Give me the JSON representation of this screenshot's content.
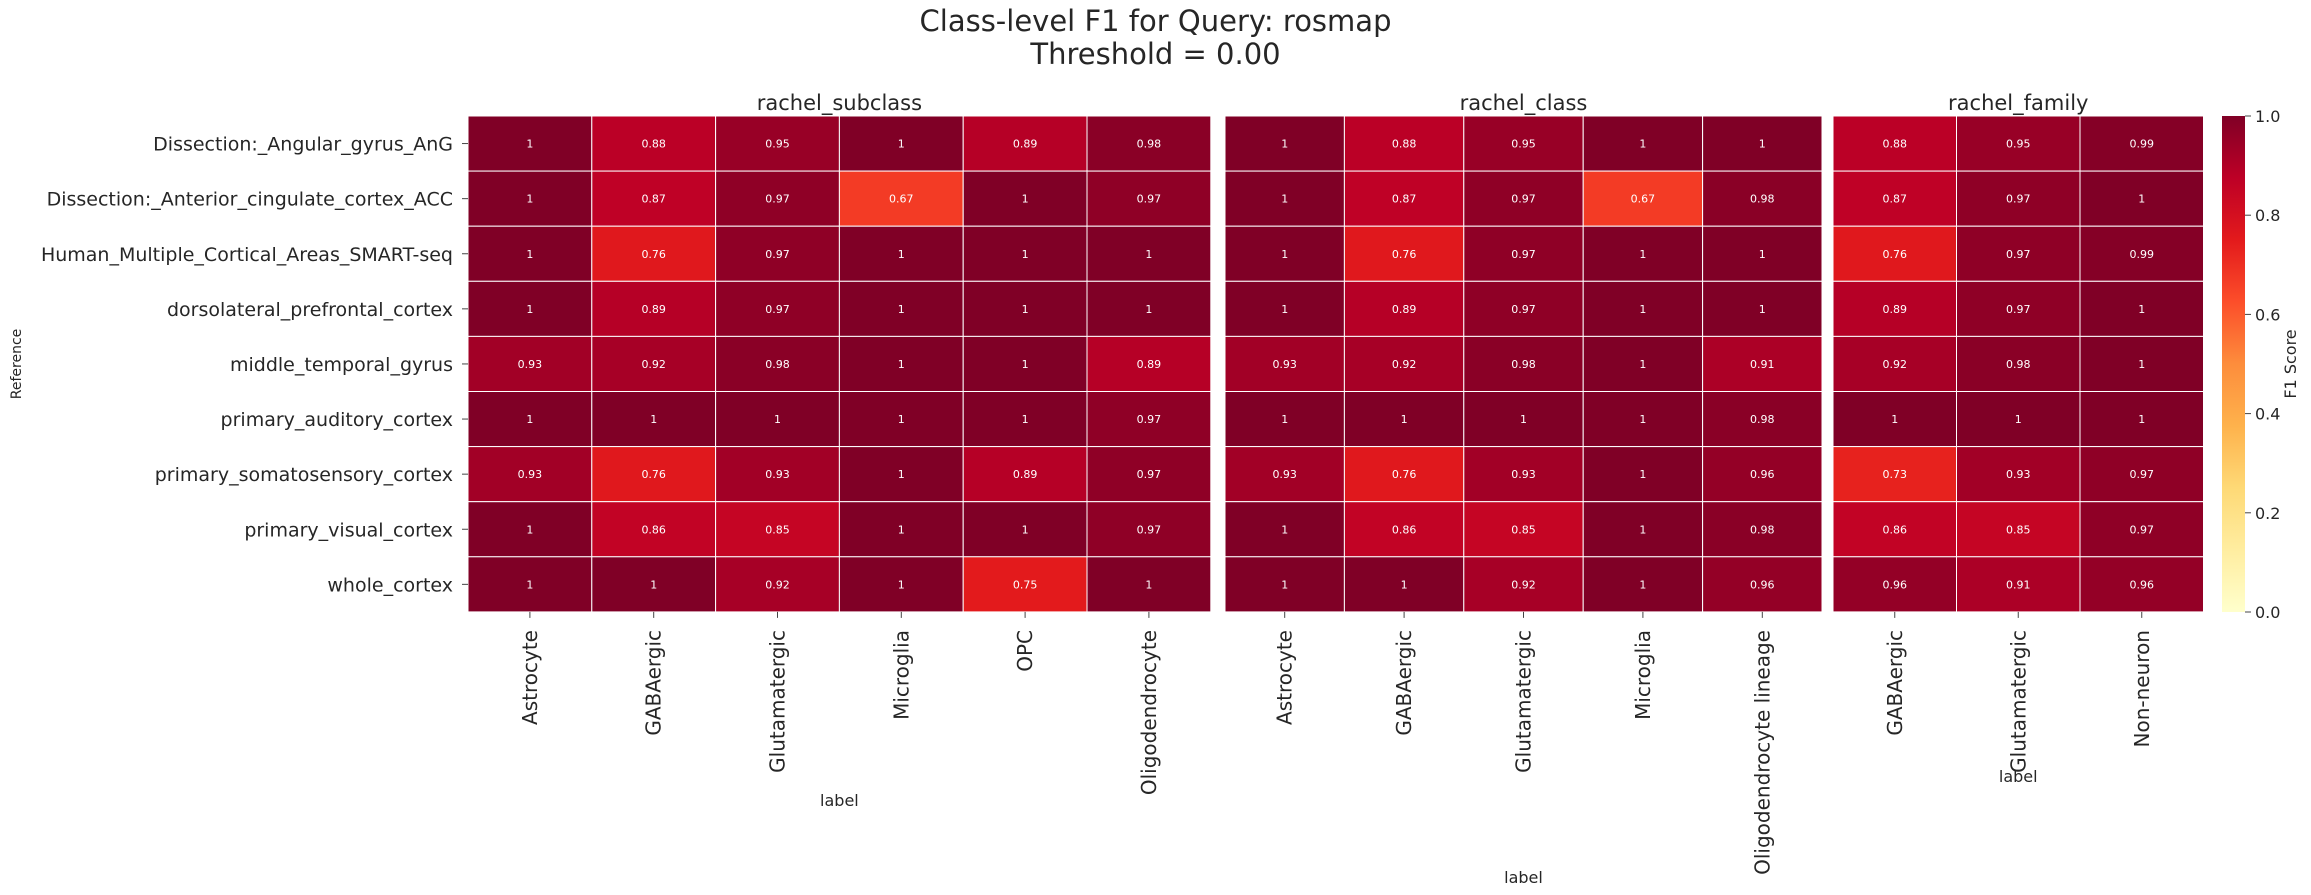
{
  "title": "Class-level F1 for Query: rosmap",
  "subtitle": "Threshold = 0.00",
  "chart_data": [
    {
      "type": "heatmap",
      "title": "rachel_subclass",
      "xlabel": "label",
      "ylabel": "Reference",
      "rows": [
        "Dissection:_Angular_gyrus_AnG",
        "Dissection:_Anterior_cingulate_cortex_ACC",
        "Human_Multiple_Cortical_Areas_SMART-seq",
        "dorsolateral_prefrontal_cortex",
        "middle_temporal_gyrus",
        "primary_auditory_cortex",
        "primary_somatosensory_cortex",
        "primary_visual_cortex",
        "whole_cortex"
      ],
      "columns": [
        "Astrocyte",
        "GABAergic",
        "Glutamatergic",
        "Microglia",
        "OPC",
        "Oligodendrocyte"
      ],
      "values": [
        [
          1,
          0.88,
          0.95,
          1,
          0.89,
          0.98
        ],
        [
          1,
          0.87,
          0.97,
          0.67,
          1,
          0.97
        ],
        [
          1,
          0.76,
          0.97,
          1,
          1,
          1
        ],
        [
          1,
          0.89,
          0.97,
          1,
          1,
          1
        ],
        [
          0.93,
          0.92,
          0.98,
          1,
          1,
          0.89
        ],
        [
          1,
          1,
          1,
          1,
          1,
          0.97
        ],
        [
          0.93,
          0.76,
          0.93,
          1,
          0.89,
          0.97
        ],
        [
          1,
          0.86,
          0.85,
          1,
          1,
          0.97
        ],
        [
          1,
          1,
          0.92,
          1,
          0.75,
          1
        ]
      ]
    },
    {
      "type": "heatmap",
      "title": "rachel_class",
      "xlabel": "label",
      "columns": [
        "Astrocyte",
        "GABAergic",
        "Glutamatergic",
        "Microglia",
        "Oligodendrocyte lineage"
      ],
      "values": [
        [
          1,
          0.88,
          0.95,
          1,
          1
        ],
        [
          1,
          0.87,
          0.97,
          0.67,
          0.98
        ],
        [
          1,
          0.76,
          0.97,
          1,
          1
        ],
        [
          1,
          0.89,
          0.97,
          1,
          1
        ],
        [
          0.93,
          0.92,
          0.98,
          1,
          0.91
        ],
        [
          1,
          1,
          1,
          1,
          0.98
        ],
        [
          0.93,
          0.76,
          0.93,
          1,
          0.96
        ],
        [
          1,
          0.86,
          0.85,
          1,
          0.98
        ],
        [
          1,
          1,
          0.92,
          1,
          0.96
        ]
      ]
    },
    {
      "type": "heatmap",
      "title": "rachel_family",
      "xlabel": "label",
      "columns": [
        "GABAergic",
        "Glutamatergic",
        "Non-neuron"
      ],
      "values": [
        [
          0.88,
          0.95,
          0.99
        ],
        [
          0.87,
          0.97,
          1
        ],
        [
          0.76,
          0.97,
          0.99
        ],
        [
          0.89,
          0.97,
          1
        ],
        [
          0.92,
          0.98,
          1
        ],
        [
          1,
          1,
          1
        ],
        [
          0.73,
          0.93,
          0.97
        ],
        [
          0.86,
          0.85,
          0.97
        ],
        [
          0.96,
          0.91,
          0.96
        ]
      ]
    }
  ],
  "colorbar": {
    "label": "F1 Score",
    "colormap": "YlOrRd",
    "range": [
      0,
      1
    ],
    "ticks": [
      "0.0",
      "0.2",
      "0.4",
      "0.6",
      "0.8",
      "1.0"
    ]
  }
}
